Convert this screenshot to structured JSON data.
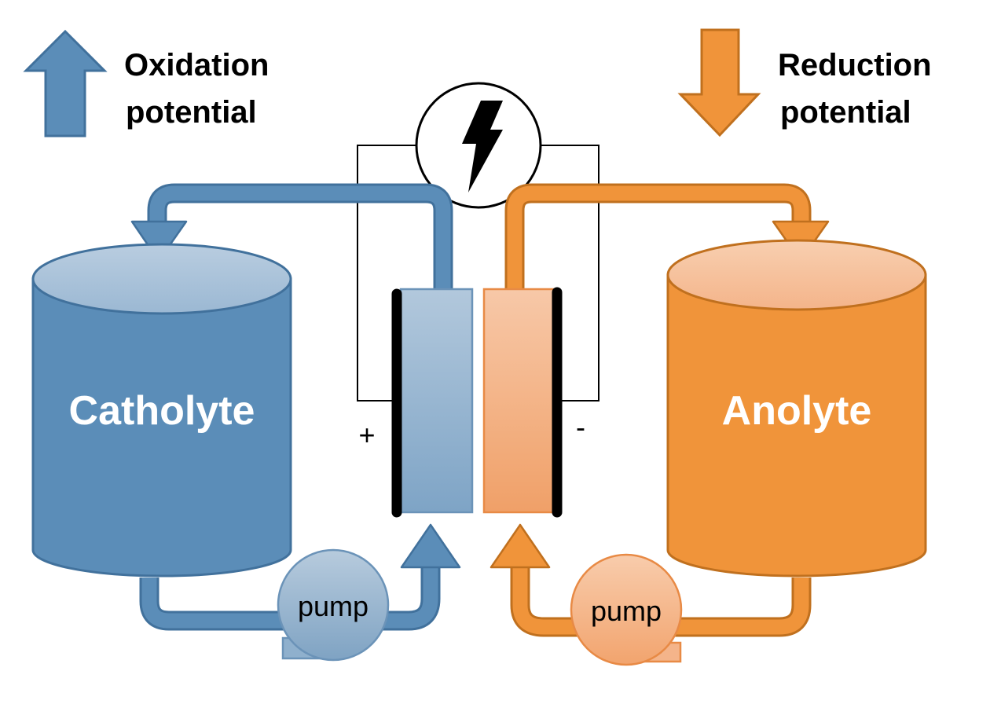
{
  "oxidation": {
    "line1": "Oxidation",
    "line2": "potential"
  },
  "reduction": {
    "line1": "Reduction",
    "line2": "potential"
  },
  "catholyte": {
    "label": "Catholyte"
  },
  "anolyte": {
    "label": "Anolyte"
  },
  "terminals": {
    "positive": "+",
    "negative": "-"
  },
  "pump_left": {
    "label": "pump"
  },
  "pump_right": {
    "label": "pump"
  },
  "colors": {
    "blue": "#5b8db8",
    "blue_dark": "#41719c",
    "blue_light": "#aac2d6",
    "orange": "#f0943a",
    "orange_dark": "#c0701e",
    "orange_light": "#f6c4a2"
  },
  "icons": {
    "power_source": "lightning-bolt-icon"
  }
}
